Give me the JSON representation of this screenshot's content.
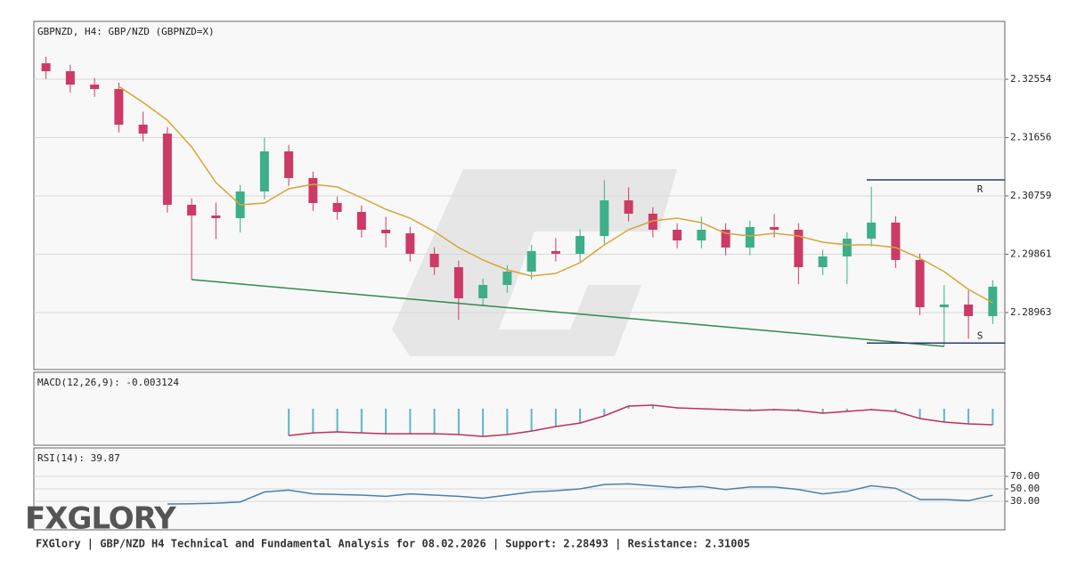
{
  "chart_data": [
    {
      "type": "candlestick",
      "title": "GBPNZD, H4: GBP/NZD (GBPNZD=X)",
      "up_color": "#3cae8a",
      "down_color": "#cc3a66",
      "open": [
        2.328,
        2.32678,
        2.32472,
        2.32403,
        2.31855,
        2.31718,
        2.30622,
        2.30457,
        2.30416,
        2.30827,
        2.31444,
        2.31033,
        2.30649,
        2.30512,
        2.30238,
        2.30183,
        2.29868,
        2.29662,
        2.29183,
        2.29388,
        2.29594,
        2.29909,
        2.29868,
        2.30142,
        2.3069,
        2.30485,
        2.30238,
        2.30073,
        2.30238,
        2.29964,
        2.30279,
        2.30238,
        2.29662,
        2.29827,
        2.30101,
        2.30348,
        2.29772,
        2.29045,
        2.29087,
        2.28908
      ],
      "high": [
        2.329,
        2.32778,
        2.32572,
        2.32503,
        2.32055,
        2.31818,
        2.30722,
        2.30657,
        2.30927,
        2.31656,
        2.31544,
        2.31133,
        2.30749,
        2.30612,
        2.30438,
        2.30283,
        2.29968,
        2.29762,
        2.29488,
        2.29694,
        2.30009,
        2.30109,
        2.30242,
        2.31,
        2.3089,
        2.30585,
        2.30338,
        2.30438,
        2.30338,
        2.30379,
        2.30479,
        2.30338,
        2.29927,
        2.30201,
        2.309,
        2.30448,
        2.29872,
        2.29387,
        2.293,
        2.29461
      ],
      "low": [
        2.32558,
        2.32352,
        2.32283,
        2.31735,
        2.31598,
        2.30502,
        2.2947,
        2.30096,
        2.30196,
        2.30707,
        2.30913,
        2.30529,
        2.30392,
        2.30118,
        2.29963,
        2.29748,
        2.29542,
        2.2885,
        2.29063,
        2.29268,
        2.29474,
        2.29748,
        2.29748,
        2.30022,
        2.30365,
        2.30118,
        2.29953,
        2.29953,
        2.29844,
        2.29844,
        2.30118,
        2.294,
        2.29542,
        2.294,
        2.29981,
        2.29652,
        2.28925,
        2.28443,
        2.2856,
        2.28788
      ],
      "close": [
        2.32678,
        2.32472,
        2.32403,
        2.31855,
        2.31718,
        2.30622,
        2.30457,
        2.30416,
        2.30827,
        2.31444,
        2.31033,
        2.30649,
        2.30512,
        2.30238,
        2.30183,
        2.29868,
        2.29662,
        2.29183,
        2.29388,
        2.29594,
        2.29909,
        2.29868,
        2.30142,
        2.3069,
        2.30485,
        2.30238,
        2.30073,
        2.30238,
        2.29964,
        2.30279,
        2.30238,
        2.29662,
        2.29827,
        2.30101,
        2.30348,
        2.29772,
        2.29045,
        2.29087,
        2.28908,
        2.29361
      ],
      "ma": {
        "color": "#d6a534",
        "values": [
          null,
          null,
          null,
          2.32445,
          2.32198,
          2.31924,
          2.31513,
          2.30964,
          2.30622,
          2.30649,
          2.30868,
          2.30937,
          2.30896,
          2.30731,
          2.30553,
          2.30416,
          2.3021,
          2.29964,
          2.29772,
          2.29621,
          2.29525,
          2.29566,
          2.29731,
          2.30005,
          2.30238,
          2.30375,
          2.30416,
          2.30348,
          2.30183,
          2.30142,
          2.30183,
          2.30142,
          2.30046,
          2.30005,
          2.30005,
          2.29964,
          2.29799,
          2.29594,
          2.2932,
          2.29114
        ]
      },
      "levels": [
        {
          "label": "R",
          "value": 2.31005,
          "color": "#2e3c70"
        },
        {
          "label": "S",
          "value": 2.28493,
          "color": "#2e3c70"
        }
      ],
      "trendline": {
        "start": [
          6,
          2.2947
        ],
        "end": [
          37,
          2.28443
        ],
        "color": "#2f8a50"
      },
      "ylim": [
        2.28086,
        2.33445
      ],
      "yticks": [
        2.32554,
        2.31656,
        2.30759,
        2.29861,
        2.28963
      ],
      "grid": true
    },
    {
      "type": "macd",
      "title": "MACD(12,26,9): -0.003124",
      "bar_color": "#5bb8c8",
      "line_color": "#c0305a",
      "values": [
        null,
        null,
        null,
        null,
        null,
        null,
        null,
        null,
        null,
        null,
        -0.00521,
        -0.00469,
        -0.00451,
        -0.00469,
        -0.00486,
        -0.00486,
        -0.00486,
        -0.00503,
        -0.00538,
        -0.00503,
        -0.00434,
        -0.00347,
        -0.00278,
        -0.00139,
        0.00052,
        0.00069,
        0.00017,
        0,
        -0.00017,
        -0.00035,
        -0.00017,
        -0.00035,
        -0.00087,
        -0.00052,
        -0.00017,
        -0.00052,
        -0.00191,
        -0.0026,
        -0.00295,
        -0.003124
      ],
      "ylim": [
        -0.0071,
        0.0071
      ]
    },
    {
      "type": "line",
      "title": "RSI(14): 39.87",
      "color": "#4a80aa",
      "values": [
        null,
        null,
        null,
        null,
        null,
        25.7,
        26,
        27,
        29,
        45,
        48,
        42,
        41,
        40,
        38,
        42,
        40,
        38,
        35,
        40,
        45,
        47,
        50,
        57,
        58,
        55,
        52,
        54,
        49,
        53,
        53,
        49,
        42,
        46,
        55,
        51,
        33,
        33,
        31,
        39.87
      ],
      "ylim": [
        -15.7,
        115.7
      ],
      "yticks": [
        {
          "value": 70,
          "label": "70.00"
        },
        {
          "value": 50,
          "label": "50.00"
        },
        {
          "value": 30,
          "label": "30.00"
        }
      ],
      "grid": true
    }
  ],
  "logo": "FXGLORY",
  "footer": "FXGlory | GBP/NZD H4 Technical and Fundamental Analysis for 08.02.2026 | Support: 2.28493 | Resistance: 2.31005"
}
